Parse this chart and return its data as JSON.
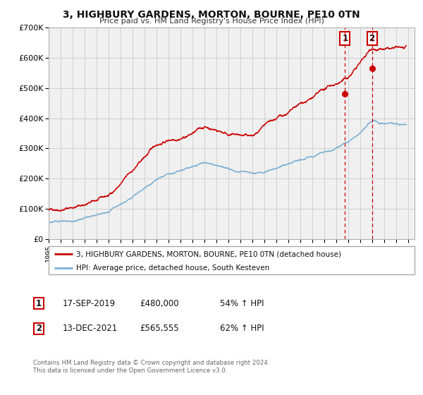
{
  "title": "3, HIGHBURY GARDENS, MORTON, BOURNE, PE10 0TN",
  "subtitle": "Price paid vs. HM Land Registry's House Price Index (HPI)",
  "ylim": [
    0,
    700000
  ],
  "xlim_start": 1995.0,
  "xlim_end": 2025.5,
  "yticks": [
    0,
    100000,
    200000,
    300000,
    400000,
    500000,
    600000,
    700000
  ],
  "ytick_labels": [
    "£0",
    "£100K",
    "£200K",
    "£300K",
    "£400K",
    "£500K",
    "£600K",
    "£700K"
  ],
  "xticks": [
    1995,
    1996,
    1997,
    1998,
    1999,
    2000,
    2001,
    2002,
    2003,
    2004,
    2005,
    2006,
    2007,
    2008,
    2009,
    2010,
    2011,
    2012,
    2013,
    2014,
    2015,
    2016,
    2017,
    2018,
    2019,
    2020,
    2021,
    2022,
    2023,
    2024,
    2025
  ],
  "line1_color": "#cc0000",
  "line2_color": "#7bafd4",
  "marker1_color": "#cc0000",
  "vline_color": "#cc0000",
  "background_color": "#ffffff",
  "plot_bg_color": "#f0f0f0",
  "grid_color": "#cccccc",
  "legend1_label": "3, HIGHBURY GARDENS, MORTON, BOURNE, PE10 0TN (detached house)",
  "legend2_label": "HPI: Average price, detached house, South Kesteven",
  "annotation1_date": "17-SEP-2019",
  "annotation1_price": "£480,000",
  "annotation1_hpi": "54% ↑ HPI",
  "annotation1_year": 2019.71,
  "annotation1_value": 480000,
  "annotation2_date": "13-DEC-2021",
  "annotation2_price": "£565,555",
  "annotation2_hpi": "62% ↑ HPI",
  "annotation2_year": 2021.95,
  "annotation2_value": 565555,
  "footer1": "Contains HM Land Registry data © Crown copyright and database right 2024.",
  "footer2": "This data is licensed under the Open Government Licence v3.0."
}
